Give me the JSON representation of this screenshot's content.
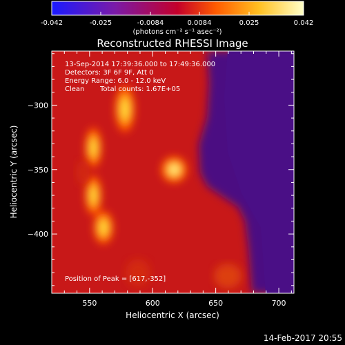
{
  "colorbar": {
    "tick_labels": [
      "-0.042",
      "-0.025",
      "-0.0084",
      "0.0084",
      "0.025",
      "0.042"
    ],
    "units_label": "(photons cm⁻² s⁻¹ asec⁻²)",
    "range": [
      -0.042,
      0.042
    ],
    "colors": [
      "#1a1aff",
      "#7a1aa8",
      "#c4002a",
      "#ff5a00",
      "#ffbf20",
      "#ffffc8"
    ]
  },
  "chart_data": {
    "type": "heatmap",
    "title": "Reconstructed RHESSI Image",
    "xlabel": "Heliocentric X (arcsec)",
    "ylabel": "Heliocentric Y (arcsec)",
    "xlim": [
      520,
      712
    ],
    "ylim": [
      -446,
      -258
    ],
    "x_ticks": [
      550,
      600,
      650,
      700
    ],
    "y_ticks": [
      -300,
      -350,
      -400
    ],
    "annotations": [
      "13-Sep-2014 17:39:36.000 to 17:49:36.000",
      "Detectors: 3F 6F 9F, Att 0",
      "Energy Range: 6.0 - 12.0 keV",
      "Clean",
      "Total counts: 1.67E+05",
      "Position of Peak = [617,-352]"
    ],
    "peak": {
      "x": 617,
      "y": -352
    },
    "sources": [
      {
        "x": 617,
        "y": -350,
        "sx": 8,
        "sy": 8,
        "amp": 0.04
      },
      {
        "x": 578,
        "y": -303,
        "sx": 6,
        "sy": 14,
        "amp": 0.025
      },
      {
        "x": 553,
        "y": -333,
        "sx": 5,
        "sy": 12,
        "amp": 0.026
      },
      {
        "x": 553,
        "y": -370,
        "sx": 5,
        "sy": 12,
        "amp": 0.025
      },
      {
        "x": 561,
        "y": -395,
        "sx": 6,
        "sy": 10,
        "amp": 0.028
      }
    ]
  },
  "footer": {
    "date": "14-Feb-2017 20:55"
  }
}
